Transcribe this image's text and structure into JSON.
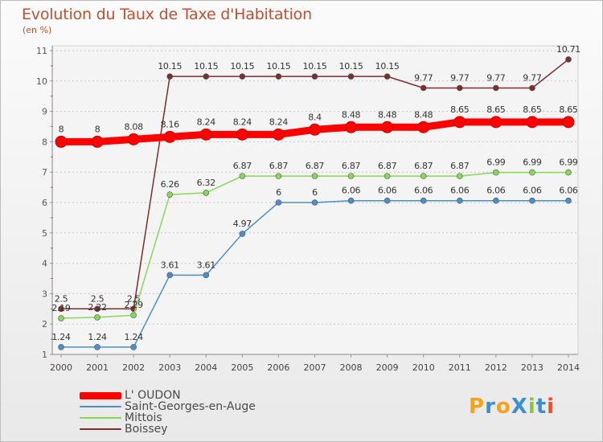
{
  "title": "Evolution du Taux de Taxe d'Habitation",
  "subtitle": "(en %)",
  "logo": "ProXiti",
  "chart_data": {
    "type": "line",
    "categories": [
      "2000",
      "2001",
      "2002",
      "2003",
      "2004",
      "2005",
      "2006",
      "2007",
      "2008",
      "2009",
      "2010",
      "2011",
      "2012",
      "2013",
      "2014"
    ],
    "ylim": [
      1,
      11
    ],
    "yticks": [
      1,
      2,
      3,
      4,
      5,
      6,
      7,
      8,
      9,
      10,
      11
    ],
    "grid": "horizontal dotted",
    "legend_position": "bottom-left",
    "series": [
      {
        "name": "L' OUDON",
        "color": "#ff0000",
        "values": [
          8,
          8,
          8.08,
          8.16,
          8.24,
          8.24,
          8.24,
          8.4,
          8.48,
          8.48,
          8.48,
          8.65,
          8.65,
          8.65,
          8.65
        ],
        "labels": [
          "8",
          "8",
          "8.08",
          "8.16",
          "8.24",
          "8.24",
          "8.24",
          "8.4",
          "8.48",
          "8.48",
          "8.48",
          "8.65",
          "8.65",
          "8.65",
          "8.65"
        ]
      },
      {
        "name": "Saint-Georges-en-Auge",
        "color": "#4a90c8",
        "values": [
          1.24,
          1.24,
          1.24,
          3.61,
          3.61,
          4.97,
          6,
          6,
          6.06,
          6.06,
          6.06,
          6.06,
          6.06,
          6.06,
          6.06
        ],
        "labels": [
          "1.24",
          "1.24",
          "1.24",
          "3.61",
          "3.61",
          "4.97",
          "6",
          "6",
          "6.06",
          "6.06",
          "6.06",
          "6.06",
          "6.06",
          "6.06",
          "6.06"
        ]
      },
      {
        "name": "Mittois",
        "color": "#88d858",
        "values": [
          2.19,
          2.22,
          2.29,
          6.26,
          6.32,
          6.87,
          6.87,
          6.87,
          6.87,
          6.87,
          6.87,
          6.87,
          6.99,
          6.99,
          6.99
        ],
        "labels": [
          "2.19",
          "2.22",
          "2.29",
          "6.26",
          "6.32",
          "6.87",
          "6.87",
          "6.87",
          "6.87",
          "6.87",
          "6.87",
          "6.87",
          "6.99",
          "6.99",
          "6.99"
        ]
      },
      {
        "name": "Boissey",
        "color": "#7a2e2e",
        "values": [
          2.5,
          2.5,
          2.5,
          10.15,
          10.15,
          10.15,
          10.15,
          10.15,
          10.15,
          10.15,
          9.77,
          9.77,
          9.77,
          9.77,
          10.71
        ],
        "labels": [
          "2.5",
          "2.5",
          "2.5",
          "10.15",
          "10.15",
          "10.15",
          "10.15",
          "10.15",
          "10.15",
          "10.15",
          "9.77",
          "9.77",
          "9.77",
          "9.77",
          "10.71"
        ]
      }
    ]
  }
}
